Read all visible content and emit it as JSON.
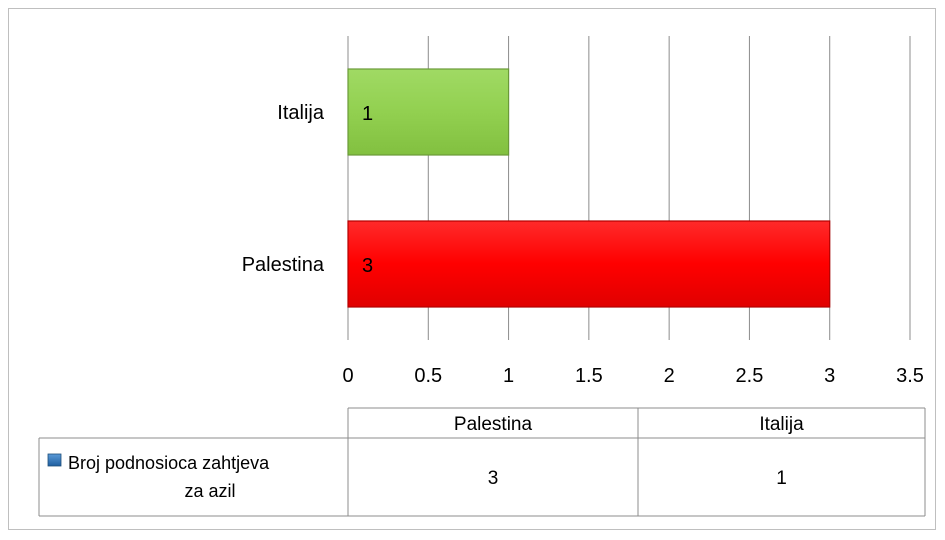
{
  "chart_data": {
    "type": "bar",
    "orientation": "horizontal",
    "categories": [
      "Palestina",
      "Italija"
    ],
    "series": [
      {
        "name": "Broj podnosioca zahtjeva za azil",
        "values": [
          3,
          1
        ],
        "value_labels": [
          "3",
          "1"
        ]
      }
    ],
    "bar_colors": [
      "#ff0000",
      "#92d050"
    ],
    "legend_marker_color": "#2e75b6",
    "xlim": [
      0,
      3.5
    ],
    "x_ticks": [
      "0",
      "0.5",
      "1",
      "1.5",
      "2",
      "2.5",
      "3",
      "3.5"
    ],
    "grid": true,
    "data_table": {
      "header": [
        "Palestina",
        "Italija"
      ],
      "row_label": "Broj podnosioca zahtjeva za azil",
      "row_label_lines": [
        "Broj podnosioca zahtjeva",
        "za azil"
      ],
      "row_values": [
        "3",
        "1"
      ]
    }
  }
}
